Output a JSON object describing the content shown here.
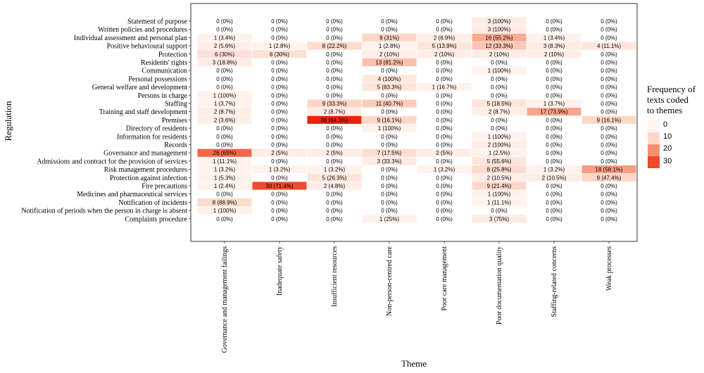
{
  "chart_data": {
    "type": "heatmap",
    "xlabel": "Theme",
    "ylabel": "Regulation",
    "legend": {
      "title_lines": [
        "Frequency of",
        "texts coded",
        "to themes"
      ],
      "ticks": [
        "0",
        "10",
        "20",
        "30"
      ],
      "placement": "right"
    },
    "colors": {
      "low": "#fff5f0",
      "high": "#ee2a10"
    },
    "value_range": [
      0,
      30
    ],
    "columns": [
      "Governance and management failings",
      "Inadequate safety",
      "Insufficient resources",
      "Non-person-centred care",
      "Poor care management",
      "Poor documentation quality",
      "Staffing-related concerns",
      "Weak processes"
    ],
    "rows": [
      {
        "name": "Statement of purpose",
        "cells": [
          [
            0,
            "0 (0%)"
          ],
          [
            0,
            "0 (0%)"
          ],
          [
            0,
            "0 (0%)"
          ],
          [
            0,
            "0 (0%)"
          ],
          [
            0,
            "0 (0%)"
          ],
          [
            3,
            "3 (100%)"
          ],
          [
            0,
            "0 (0%)"
          ],
          [
            0,
            "0 (0%)"
          ]
        ]
      },
      {
        "name": "Written policies and procedures",
        "cells": [
          [
            0,
            "0 (0%)"
          ],
          [
            0,
            "0 (0%)"
          ],
          [
            0,
            "0 (0%)"
          ],
          [
            0,
            "0 (0%)"
          ],
          [
            0,
            "0 (0%)"
          ],
          [
            3,
            "3 (100%)"
          ],
          [
            0,
            "0 (0%)"
          ],
          [
            0,
            "0 (0%)"
          ]
        ]
      },
      {
        "name": "Individual assessment and personal plan",
        "cells": [
          [
            1,
            "1 (3.4%)"
          ],
          [
            0,
            "0 (0%)"
          ],
          [
            0,
            "0 (0%)"
          ],
          [
            9,
            "9 (31%)"
          ],
          [
            2,
            "2 (6.9%)"
          ],
          [
            16,
            "16 (55.2%)"
          ],
          [
            1,
            "1 (3.4%)"
          ],
          [
            0,
            "0 (0%)"
          ]
        ]
      },
      {
        "name": "Positive behavioural support",
        "cells": [
          [
            2,
            "2 (5.6%)"
          ],
          [
            1,
            "1 (2.8%)"
          ],
          [
            8,
            "8 (22.2%)"
          ],
          [
            1,
            "1 (2.8%)"
          ],
          [
            5,
            "5 (13.9%)"
          ],
          [
            12,
            "12 (33.3%)"
          ],
          [
            3,
            "3 (8.3%)"
          ],
          [
            4,
            "4 (11.1%)"
          ]
        ]
      },
      {
        "name": "Protection",
        "cells": [
          [
            6,
            "6 (30%)"
          ],
          [
            6,
            "6 (30%)"
          ],
          [
            0,
            "0 (0%)"
          ],
          [
            2,
            "2 (10%)"
          ],
          [
            2,
            "2 (10%)"
          ],
          [
            2,
            "2 (10%)"
          ],
          [
            2,
            "2 (10%)"
          ],
          [
            0,
            "0 (0%)"
          ]
        ]
      },
      {
        "name": "Residents' rights",
        "cells": [
          [
            3,
            "3 (18.8%)"
          ],
          [
            0,
            "0 (0%)"
          ],
          [
            0,
            "0 (0%)"
          ],
          [
            13,
            "13 (81.2%)"
          ],
          [
            0,
            "0 (0%)"
          ],
          [
            0,
            "0 (0%)"
          ],
          [
            0,
            "0 (0%)"
          ],
          [
            0,
            "0 (0%)"
          ]
        ]
      },
      {
        "name": "Communication",
        "cells": [
          [
            0,
            "0 (0%)"
          ],
          [
            0,
            "0 (0%)"
          ],
          [
            0,
            "0 (0%)"
          ],
          [
            0,
            "0 (0%)"
          ],
          [
            0,
            "0 (0%)"
          ],
          [
            1,
            "1 (100%)"
          ],
          [
            0,
            "0 (0%)"
          ],
          [
            0,
            "0 (0%)"
          ]
        ]
      },
      {
        "name": "Personal possessions",
        "cells": [
          [
            0,
            "0 (0%)"
          ],
          [
            0,
            "0 (0%)"
          ],
          [
            0,
            "0 (0%)"
          ],
          [
            4,
            "4 (100%)"
          ],
          [
            0,
            "0 (0%)"
          ],
          [
            0,
            "0 (0%)"
          ],
          [
            0,
            "0 (0%)"
          ],
          [
            0,
            "0 (0%)"
          ]
        ]
      },
      {
        "name": "General welfare and development",
        "cells": [
          [
            0,
            "0 (0%)"
          ],
          [
            0,
            "0 (0%)"
          ],
          [
            0,
            "0 (0%)"
          ],
          [
            5,
            "5 (83.3%)"
          ],
          [
            1,
            "1 (16.7%)"
          ],
          [
            0,
            "0 (0%)"
          ],
          [
            0,
            "0 (0%)"
          ],
          [
            0,
            "0 (0%)"
          ]
        ]
      },
      {
        "name": "Persons in charge",
        "cells": [
          [
            1,
            "1 (100%)"
          ],
          [
            0,
            "0 (0%)"
          ],
          [
            0,
            "0 (0%)"
          ],
          [
            0,
            "0 (0%)"
          ],
          [
            0,
            "0 (0%)"
          ],
          [
            0,
            "0 (0%)"
          ],
          [
            0,
            "0 (0%)"
          ],
          [
            0,
            "0 (0%)"
          ]
        ]
      },
      {
        "name": "Staffing",
        "cells": [
          [
            1,
            "1 (3.7%)"
          ],
          [
            0,
            "0 (0%)"
          ],
          [
            9,
            "9 (33.3%)"
          ],
          [
            11,
            "11 (40.7%)"
          ],
          [
            0,
            "0 (0%)"
          ],
          [
            5,
            "5 (18.5%)"
          ],
          [
            1,
            "1 (3.7%)"
          ],
          [
            0,
            "0 (0%)"
          ]
        ]
      },
      {
        "name": "Training and staff development",
        "cells": [
          [
            2,
            "2 (8.7%)"
          ],
          [
            0,
            "0 (0%)"
          ],
          [
            2,
            "2 (8.7%)"
          ],
          [
            0,
            "0 (0%)"
          ],
          [
            0,
            "0 (0%)"
          ],
          [
            2,
            "2 (8.7%)"
          ],
          [
            17,
            "17 (73.9%)"
          ],
          [
            0,
            "0 (0%)"
          ]
        ]
      },
      {
        "name": "Premises",
        "cells": [
          [
            2,
            "2 (3.6%)"
          ],
          [
            0,
            "0 (0%)"
          ],
          [
            36,
            "36 (64.3%)"
          ],
          [
            9,
            "9 (16.1%)"
          ],
          [
            0,
            "0 (0%)"
          ],
          [
            0,
            "0 (0%)"
          ],
          [
            0,
            "0 (0%)"
          ],
          [
            9,
            "9 (16.1%)"
          ]
        ]
      },
      {
        "name": "Directory of residents",
        "cells": [
          [
            0,
            "0 (0%)"
          ],
          [
            0,
            "0 (0%)"
          ],
          [
            0,
            "0 (0%)"
          ],
          [
            1,
            "1 (100%)"
          ],
          [
            0,
            "0 (0%)"
          ],
          [
            0,
            "0 (0%)"
          ],
          [
            0,
            "0 (0%)"
          ],
          [
            0,
            "0 (0%)"
          ]
        ]
      },
      {
        "name": "Information for residents",
        "cells": [
          [
            0,
            "0 (0%)"
          ],
          [
            0,
            "0 (0%)"
          ],
          [
            0,
            "0 (0%)"
          ],
          [
            0,
            "0 (0%)"
          ],
          [
            0,
            "0 (0%)"
          ],
          [
            1,
            "1 (100%)"
          ],
          [
            0,
            "0 (0%)"
          ],
          [
            0,
            "0 (0%)"
          ]
        ]
      },
      {
        "name": "Records",
        "cells": [
          [
            0,
            "0 (0%)"
          ],
          [
            0,
            "0 (0%)"
          ],
          [
            0,
            "0 (0%)"
          ],
          [
            0,
            "0 (0%)"
          ],
          [
            0,
            "0 (0%)"
          ],
          [
            2,
            "2 (100%)"
          ],
          [
            0,
            "0 (0%)"
          ],
          [
            0,
            "0 (0%)"
          ]
        ]
      },
      {
        "name": "Governance and management",
        "cells": [
          [
            26,
            "26 (65%)"
          ],
          [
            2,
            "2 (5%)"
          ],
          [
            2,
            "2 (5%)"
          ],
          [
            7,
            "7 (17.5%)"
          ],
          [
            2,
            "2 (5%)"
          ],
          [
            1,
            "1 (2.5%)"
          ],
          [
            0,
            "0 (0%)"
          ],
          [
            0,
            "0 (0%)"
          ]
        ]
      },
      {
        "name": "Admissions and contract for the provision of services",
        "cells": [
          [
            1,
            "1 (11.1%)"
          ],
          [
            0,
            "0 (0%)"
          ],
          [
            0,
            "0 (0%)"
          ],
          [
            3,
            "3 (33.3%)"
          ],
          [
            0,
            "0 (0%)"
          ],
          [
            5,
            "5 (55.6%)"
          ],
          [
            0,
            "0 (0%)"
          ],
          [
            0,
            "0 (0%)"
          ]
        ]
      },
      {
        "name": "Risk management procedures",
        "cells": [
          [
            1,
            "1 (3.2%)"
          ],
          [
            1,
            "1 (3.2%)"
          ],
          [
            1,
            "1 (3.2%)"
          ],
          [
            0,
            "0 (0%)"
          ],
          [
            1,
            "1 (3.2%)"
          ],
          [
            8,
            "8 (25.8%)"
          ],
          [
            1,
            "1 (3.2%)"
          ],
          [
            18,
            "18 (58.1%)"
          ]
        ]
      },
      {
        "name": "Protection against infection",
        "cells": [
          [
            1,
            "1 (5.3%)"
          ],
          [
            0,
            "0 (0%)"
          ],
          [
            5,
            "5 (26.3%)"
          ],
          [
            0,
            "0 (0%)"
          ],
          [
            0,
            "0 (0%)"
          ],
          [
            2,
            "2 (10.5%)"
          ],
          [
            2,
            "2 (10.5%)"
          ],
          [
            9,
            "9 (47.4%)"
          ]
        ]
      },
      {
        "name": "Fire precautions",
        "cells": [
          [
            1,
            "1 (2.4%)"
          ],
          [
            30,
            "30 (71.4%)"
          ],
          [
            2,
            "2 (4.8%)"
          ],
          [
            0,
            "0 (0%)"
          ],
          [
            0,
            "0 (0%)"
          ],
          [
            9,
            "9 (21.4%)"
          ],
          [
            0,
            "0 (0%)"
          ],
          [
            0,
            "0 (0%)"
          ]
        ]
      },
      {
        "name": "Medicines and pharmaceutical services",
        "cells": [
          [
            0,
            "0 (0%)"
          ],
          [
            0,
            "0 (0%)"
          ],
          [
            0,
            "0 (0%)"
          ],
          [
            0,
            "0 (0%)"
          ],
          [
            0,
            "0 (0%)"
          ],
          [
            1,
            "1 (100%)"
          ],
          [
            0,
            "0 (0%)"
          ],
          [
            0,
            "0 (0%)"
          ]
        ]
      },
      {
        "name": "Notification of incidents",
        "cells": [
          [
            8,
            "8 (88.9%)"
          ],
          [
            0,
            "0 (0%)"
          ],
          [
            0,
            "0 (0%)"
          ],
          [
            0,
            "0 (0%)"
          ],
          [
            0,
            "0 (0%)"
          ],
          [
            1,
            "1 (11.1%)"
          ],
          [
            0,
            "0 (0%)"
          ],
          [
            0,
            "0 (0%)"
          ]
        ]
      },
      {
        "name": "Notification of periods when the person in charge is absent",
        "cells": [
          [
            1,
            "1 (100%)"
          ],
          [
            0,
            "0 (0%)"
          ],
          [
            0,
            "0 (0%)"
          ],
          [
            0,
            "0 (0%)"
          ],
          [
            0,
            "0 (0%)"
          ],
          [
            0,
            "0 (0%)"
          ],
          [
            0,
            "0 (0%)"
          ],
          [
            0,
            "0 (0%)"
          ]
        ]
      },
      {
        "name": "Complaints procedure",
        "cells": [
          [
            0,
            "0 (0%)"
          ],
          [
            0,
            "0 (0%)"
          ],
          [
            0,
            "0 (0%)"
          ],
          [
            1,
            "1 (25%)"
          ],
          [
            0,
            "0 (0%)"
          ],
          [
            3,
            "3 (75%)"
          ],
          [
            0,
            "0 (0%)"
          ],
          [
            0,
            "0 (0%)"
          ]
        ]
      }
    ]
  }
}
